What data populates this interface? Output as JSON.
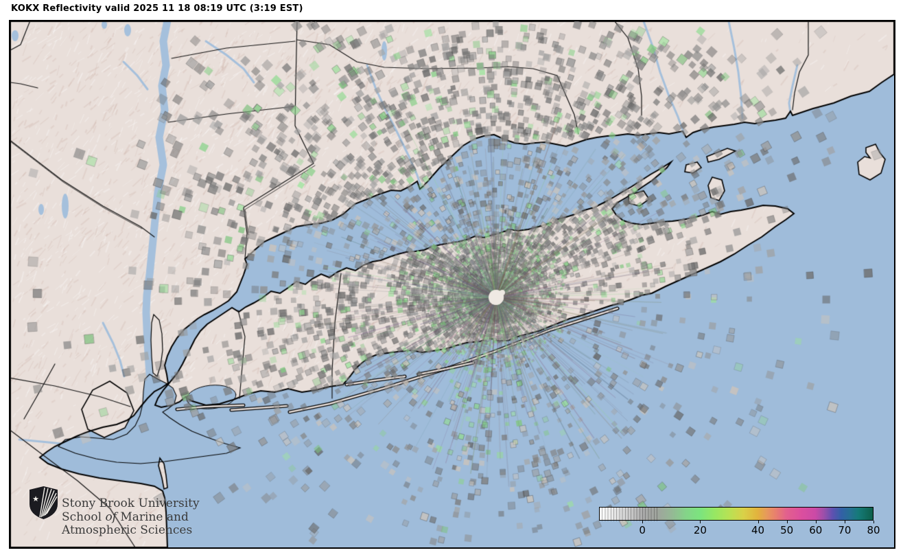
{
  "title": "KOKX Reflectivity valid 2025 11 18 08:19 UTC (3:19 EST)",
  "radar": {
    "station": "KOKX",
    "product": "Reflectivity",
    "valid_utc": "2025 11 18 08:19 UTC",
    "valid_local": "3:19 EST"
  },
  "logo": {
    "line1": "Stony Brook University",
    "line2_prefix": "School ",
    "line2_italic": "of",
    "line2_suffix": " Marine and",
    "line3": "Atmospheric Sciences"
  },
  "colorbar": {
    "min": -15,
    "max": 80,
    "ticks": [
      0,
      20,
      40,
      50,
      60,
      70,
      80
    ],
    "stops": [
      [
        -15,
        "#ffffff"
      ],
      [
        -8,
        "#dedede"
      ],
      [
        -3,
        "#c2c2c2"
      ],
      [
        0,
        "#ababab"
      ],
      [
        5,
        "#9fa49d"
      ],
      [
        10,
        "#95b895"
      ],
      [
        15,
        "#84d489"
      ],
      [
        20,
        "#7ce47e"
      ],
      [
        25,
        "#97e763"
      ],
      [
        30,
        "#b8e254"
      ],
      [
        35,
        "#d9d148"
      ],
      [
        40,
        "#e2b23d"
      ],
      [
        43,
        "#e79a5b"
      ],
      [
        46,
        "#e8816d"
      ],
      [
        50,
        "#e2608d"
      ],
      [
        55,
        "#dc4f9e"
      ],
      [
        60,
        "#cb4aa6"
      ],
      [
        63,
        "#9b4faa"
      ],
      [
        66,
        "#5e51b0"
      ],
      [
        69,
        "#3360a6"
      ],
      [
        72,
        "#266f93"
      ],
      [
        75,
        "#157a78"
      ],
      [
        80,
        "#0d5f4a"
      ]
    ]
  },
  "map_colors": {
    "water": "#9fbcda",
    "land": "#e9dfda",
    "land_shadow": "#c9b3ab",
    "coast": "#000000",
    "boundary": "#111111",
    "river": "#a5c0dc",
    "clutter_gray": "#8f8f8f",
    "clutter_green": "#95d795",
    "clutter_tan": "#cdc4ba",
    "radar_dot": "#efe9e3"
  }
}
